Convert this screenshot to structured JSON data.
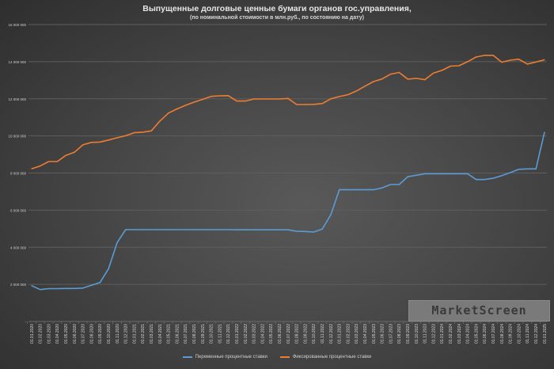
{
  "chart_data": {
    "type": "line",
    "title": "Выпущенные долговые ценные бумаги органов гос.управления,",
    "subtitle": "(по номинальной стоимости в млн.руб., по состоянию на дату)",
    "xlabel": "",
    "ylabel": "",
    "ylim": [
      0,
      16000000
    ],
    "yticks": [
      {
        "value": 0,
        "label": "-"
      },
      {
        "value": 2000000,
        "label": "2 000 000"
      },
      {
        "value": 4000000,
        "label": "4 000 000"
      },
      {
        "value": 6000000,
        "label": "6 000 000"
      },
      {
        "value": 8000000,
        "label": "8 000 000"
      },
      {
        "value": 10000000,
        "label": "10 000 000"
      },
      {
        "value": 12000000,
        "label": "12 000 000"
      },
      {
        "value": 14000000,
        "label": "14 000 000"
      },
      {
        "value": 16000000,
        "label": "16 000 000"
      }
    ],
    "grid": true,
    "legend": "bottom",
    "x": [
      "01.01.2020",
      "01.02.2020",
      "01.03.2020",
      "01.04.2020",
      "01.05.2020",
      "01.06.2020",
      "01.07.2020",
      "01.08.2020",
      "01.09.2020",
      "01.10.2020",
      "01.11.2020",
      "01.12.2020",
      "01.01.2021",
      "01.02.2021",
      "01.03.2021",
      "01.04.2021",
      "01.05.2021",
      "01.06.2021",
      "01.07.2021",
      "01.08.2021",
      "01.09.2021",
      "01.10.2021",
      "01.11.2021",
      "01.12.2021",
      "01.01.2022",
      "01.02.2022",
      "01.03.2022",
      "01.04.2022",
      "01.05.2022",
      "01.06.2022",
      "01.07.2022",
      "01.08.2022",
      "01.09.2022",
      "01.10.2022",
      "01.11.2022",
      "01.12.2022",
      "01.01.2023",
      "01.02.2023",
      "01.03.2023",
      "01.04.2023",
      "01.05.2023",
      "01.06.2023",
      "01.07.2023",
      "01.08.2023",
      "01.09.2023",
      "01.10.2023",
      "01.11.2023",
      "01.12.2023",
      "01.01.2024",
      "01.02.2024",
      "01.03.2024",
      "01.04.2024",
      "01.05.2024",
      "01.06.2024",
      "01.07.2024",
      "01.08.2024",
      "01.09.2024",
      "01.10.2024",
      "01.11.2024",
      "01.12.2024",
      "01.01.2025"
    ],
    "series": [
      {
        "name": "Переменные процентные ставки",
        "color": "#5b9bd5",
        "values": [
          1930000,
          1720000,
          1770000,
          1770000,
          1780000,
          1780000,
          1800000,
          1950000,
          2100000,
          2850000,
          4250000,
          4950000,
          4950000,
          4950000,
          4950000,
          4950000,
          4950000,
          4950000,
          4950000,
          4950000,
          4950000,
          4950000,
          4950000,
          4950000,
          4940000,
          4940000,
          4940000,
          4940000,
          4940000,
          4940000,
          4940000,
          4860000,
          4850000,
          4820000,
          4980000,
          5750000,
          7100000,
          7100000,
          7100000,
          7100000,
          7100000,
          7200000,
          7380000,
          7380000,
          7800000,
          7880000,
          7960000,
          7960000,
          7960000,
          7960000,
          7960000,
          7960000,
          7650000,
          7650000,
          7720000,
          7860000,
          8020000,
          8200000,
          8220000,
          8220000,
          10200000
        ]
      },
      {
        "name": "Фиксированные процентные ставки",
        "color": "#ed7d31",
        "values": [
          8230000,
          8380000,
          8620000,
          8620000,
          8950000,
          9120000,
          9520000,
          9650000,
          9670000,
          9780000,
          9900000,
          10010000,
          10170000,
          10200000,
          10270000,
          10800000,
          11230000,
          11450000,
          11650000,
          11820000,
          11970000,
          12130000,
          12160000,
          12170000,
          11880000,
          11880000,
          11990000,
          11990000,
          11990000,
          11990000,
          12020000,
          11690000,
          11690000,
          11700000,
          11740000,
          12000000,
          12120000,
          12220000,
          12420000,
          12680000,
          12930000,
          13070000,
          13330000,
          13420000,
          13060000,
          13100000,
          13030000,
          13380000,
          13530000,
          13760000,
          13780000,
          14000000,
          14250000,
          14340000,
          14340000,
          13970000,
          14080000,
          14130000,
          13870000,
          13980000,
          14100000
        ]
      }
    ]
  },
  "watermark": "MarketScreen"
}
